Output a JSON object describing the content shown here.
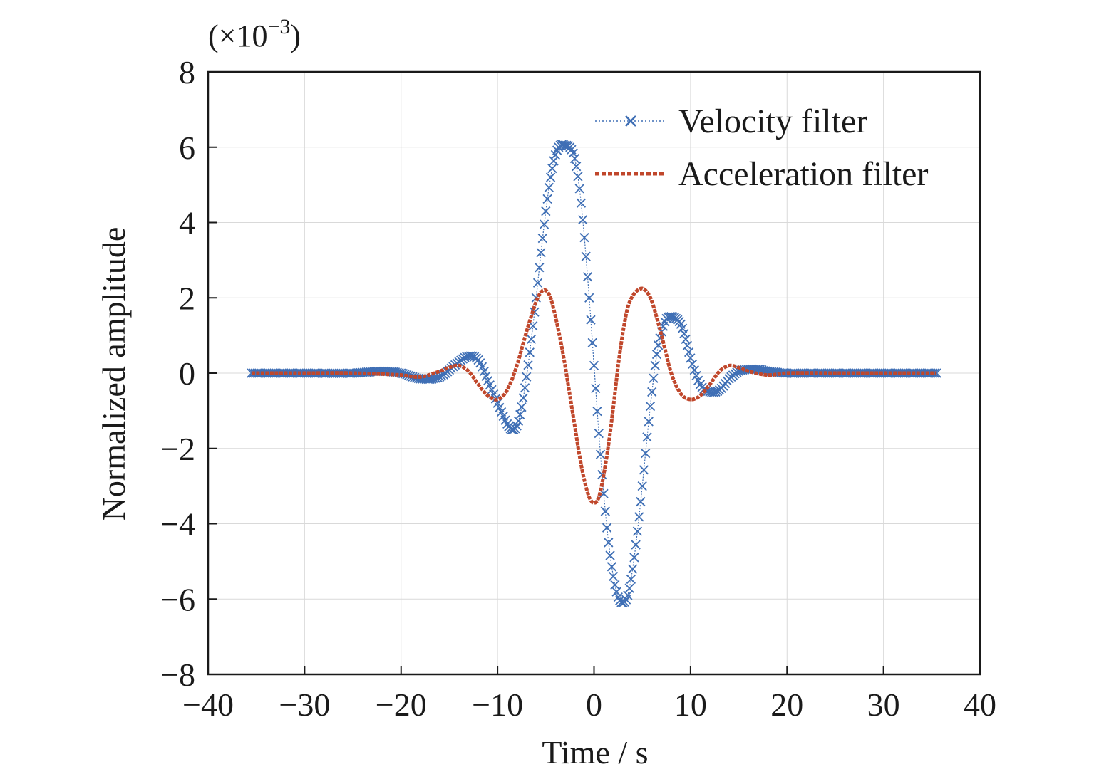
{
  "chart_data": {
    "type": "line",
    "title": "",
    "xlabel": "Time / s",
    "ylabel": "Normalized amplitude",
    "y_scale_note": {
      "prefix": "(×10",
      "exponent": "−3",
      "suffix": ")"
    },
    "xlim": [
      -40,
      40
    ],
    "ylim": [
      -8,
      8
    ],
    "x_ticks": [
      -40,
      -30,
      -20,
      -10,
      0,
      10,
      20,
      30,
      40
    ],
    "x_tick_labels": [
      "−40",
      "−30",
      "−20",
      "−10",
      "0",
      "10",
      "20",
      "30",
      "40"
    ],
    "y_ticks": [
      -8,
      -6,
      -4,
      -2,
      0,
      2,
      4,
      6,
      8
    ],
    "y_tick_labels": [
      "−8",
      "−6",
      "−4",
      "−2",
      "0",
      "2",
      "4",
      "6",
      "8"
    ],
    "grid": true,
    "legend_position": "top-right",
    "series": [
      {
        "name": "Velocity filter",
        "color": "#3f6fb5",
        "marker": "x",
        "linestyle": "dotted",
        "x": [
          -35.5,
          -30,
          -25,
          -22,
          -20,
          -18,
          -16,
          -14,
          -13,
          -12,
          -11,
          -10,
          -9,
          -8.5,
          -8,
          -7.5,
          -7,
          -6.5,
          -6,
          -5.5,
          -5,
          -4.5,
          -4,
          -3.5,
          -3,
          -2.5,
          -2,
          -1.5,
          -1,
          -0.5,
          0,
          0.5,
          1,
          1.5,
          2,
          2.5,
          3,
          3.5,
          4,
          4.5,
          5,
          5.5,
          6,
          6.5,
          7,
          7.5,
          8,
          8.5,
          9,
          9.5,
          10,
          11,
          12,
          13,
          14,
          15,
          16,
          17,
          18,
          20,
          22,
          25,
          30,
          35.5
        ],
        "y": [
          0,
          0,
          0,
          0.05,
          0,
          -0.15,
          -0.1,
          0.3,
          0.45,
          0.35,
          -0.2,
          -0.8,
          -1.35,
          -1.5,
          -1.4,
          -0.9,
          -0.1,
          0.9,
          2.0,
          3.2,
          4.3,
          5.2,
          5.8,
          6.05,
          6.05,
          6.0,
          5.7,
          4.9,
          3.6,
          2.0,
          0.2,
          -1.6,
          -3.2,
          -4.5,
          -5.4,
          -5.95,
          -6.1,
          -5.9,
          -5.2,
          -4.2,
          -3.0,
          -1.7,
          -0.5,
          0.5,
          1.1,
          1.45,
          1.5,
          1.45,
          1.3,
          0.9,
          0.4,
          -0.3,
          -0.5,
          -0.45,
          -0.15,
          0.05,
          0.1,
          0.1,
          0.05,
          0,
          0,
          0,
          0,
          0
        ]
      },
      {
        "name": "Acceleration filter",
        "color": "#c0472b",
        "marker": "none",
        "linestyle": "dashed-thick",
        "x": [
          -35.5,
          -30,
          -25,
          -20,
          -18,
          -16,
          -15,
          -14,
          -13,
          -12,
          -11,
          -10,
          -9,
          -8,
          -7,
          -6,
          -5.5,
          -5,
          -4.5,
          -4,
          -3.5,
          -3,
          -2.5,
          -2,
          -1.5,
          -1,
          -0.5,
          0,
          0.5,
          1,
          1.5,
          2,
          2.5,
          3,
          3.5,
          4,
          4.5,
          5,
          5.5,
          6,
          7,
          8,
          9,
          10,
          11,
          12,
          13,
          14,
          15,
          16,
          18,
          20,
          25,
          30,
          35.5
        ],
        "y": [
          0,
          0,
          0,
          -0.05,
          -0.1,
          0.05,
          0.15,
          0.2,
          0.05,
          -0.3,
          -0.6,
          -0.7,
          -0.45,
          0.2,
          1.1,
          1.9,
          2.15,
          2.2,
          2.0,
          1.5,
          0.9,
          0.2,
          -0.6,
          -1.4,
          -2.2,
          -2.85,
          -3.3,
          -3.45,
          -3.3,
          -2.7,
          -1.9,
          -0.9,
          0.2,
          1.1,
          1.75,
          2.05,
          2.2,
          2.25,
          2.15,
          1.9,
          1.0,
          0.0,
          -0.55,
          -0.7,
          -0.6,
          -0.3,
          0.05,
          0.2,
          0.15,
          0.05,
          -0.05,
          0,
          0,
          0,
          0
        ]
      }
    ]
  }
}
